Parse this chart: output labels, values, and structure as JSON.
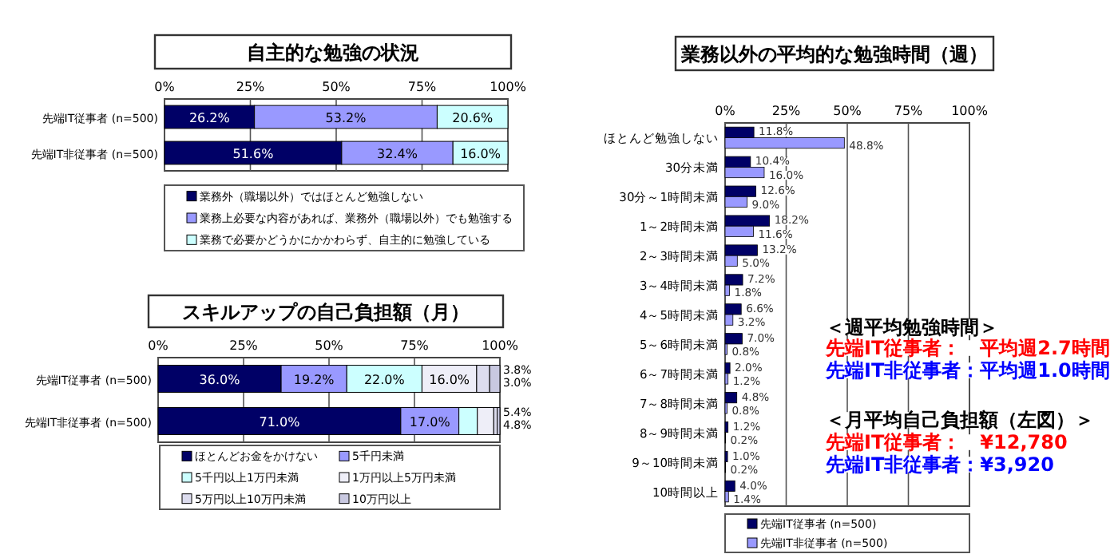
{
  "chart_data": [
    {
      "type": "bar",
      "orientation": "horizontal",
      "stacked": true,
      "title": "自主的な勉強の状況",
      "categories": [
        "先端IT従事者 (n=500)",
        "先端IT非従事者 (n=500)"
      ],
      "series": [
        {
          "name": "業務外（職場以外）ではほとんど勉強しない",
          "color": "#000066",
          "values": [
            26.2,
            51.6
          ],
          "value_labels": [
            "26.2%",
            "51.6%"
          ]
        },
        {
          "name": "業務上必要な内容があれば、業務外（職場以外）でも勉強する",
          "color": "#9999ff",
          "values": [
            53.2,
            32.4
          ],
          "value_labels": [
            "53.2%",
            "32.4%"
          ]
        },
        {
          "name": "業務で必要かどうかにかかわらず、自主的に勉強している",
          "color": "#ccffff",
          "values": [
            20.6,
            16.0
          ],
          "value_labels": [
            "20.6%",
            "16.0%"
          ]
        }
      ],
      "xlim": [
        0,
        100
      ],
      "xticks": [
        {
          "value": 0,
          "label": "0%"
        },
        {
          "value": 25,
          "label": "25%"
        },
        {
          "value": 50,
          "label": "50%"
        },
        {
          "value": 75,
          "label": "75%"
        },
        {
          "value": 100,
          "label": "100%"
        }
      ],
      "grid": "x",
      "legend": "bottom"
    },
    {
      "type": "bar",
      "orientation": "horizontal",
      "stacked": true,
      "title": "スキルアップの自己負担額（月）",
      "categories": [
        "先端IT従事者 (n=500)",
        "先端IT非従事者 (n=500)"
      ],
      "series": [
        {
          "name": "ほとんどお金をかけない",
          "color": "#000066",
          "values": [
            36.0,
            71.0
          ],
          "value_labels": [
            "36.0%",
            "71.0%"
          ]
        },
        {
          "name": "5千円未満",
          "color": "#9999ff",
          "values": [
            19.2,
            17.0
          ],
          "value_labels": [
            "19.2%",
            "17.0%"
          ]
        },
        {
          "name": "5千円以上1万円未満",
          "color": "#ccffff",
          "values": [
            22.0,
            5.4
          ],
          "value_labels": [
            "22.0%",
            "5.4%"
          ]
        },
        {
          "name": "1万円以上5万円未満",
          "color": "#eeeef8",
          "values": [
            16.0,
            4.8
          ],
          "value_labels": [
            "16.0%",
            "4.8%"
          ]
        },
        {
          "name": "5万円以上10万円未満",
          "color": "#dcdcee",
          "values": [
            3.8,
            1.0
          ],
          "value_labels": [
            "3.8%",
            null
          ]
        },
        {
          "name": "10万円以上",
          "color": "#c8c8e0",
          "values": [
            3.0,
            0.8
          ],
          "value_labels": [
            "3.0%",
            null
          ]
        }
      ],
      "xlim": [
        0,
        100
      ],
      "xticks": [
        {
          "value": 0,
          "label": "0%"
        },
        {
          "value": 25,
          "label": "25%"
        },
        {
          "value": 50,
          "label": "50%"
        },
        {
          "value": 75,
          "label": "75%"
        },
        {
          "value": 100,
          "label": "100%"
        }
      ],
      "grid": "x",
      "legend": "bottom"
    },
    {
      "type": "bar",
      "orientation": "horizontal",
      "title": "業務以外の平均的な勉強時間（週）",
      "categories": [
        "ほとんど勉強しない",
        "30分未満",
        "30分～1時間未満",
        "1～2時間未満",
        "2～3時間未満",
        "3～4時間未満",
        "4～5時間未満",
        "5～6時間未満",
        "6～7時間未満",
        "7～8時間未満",
        "8～9時間未満",
        "9～10時間未満",
        "10時間以上"
      ],
      "series": [
        {
          "name": "先端IT従事者 (n=500)",
          "color": "#000066",
          "values": [
            11.8,
            10.4,
            12.6,
            18.2,
            13.2,
            7.2,
            6.6,
            7.0,
            2.0,
            4.8,
            1.2,
            1.0,
            4.0
          ],
          "value_labels": [
            "11.8%",
            "10.4%",
            "12.6%",
            "18.2%",
            "13.2%",
            "7.2%",
            "6.6%",
            "7.0%",
            "2.0%",
            "4.8%",
            "1.2%",
            "1.0%",
            "4.0%"
          ]
        },
        {
          "name": "先端IT非従事者 (n=500)",
          "color": "#9999ff",
          "values": [
            48.8,
            16.0,
            9.0,
            11.6,
            5.0,
            1.8,
            3.2,
            0.8,
            1.2,
            0.8,
            0.2,
            0.2,
            1.4
          ],
          "value_labels": [
            "48.8%",
            "16.0%",
            "9.0%",
            "11.6%",
            "5.0%",
            "1.8%",
            "3.2%",
            "0.8%",
            "1.2%",
            "0.8%",
            "0.2%",
            "0.2%",
            "1.4%"
          ]
        }
      ],
      "xlim": [
        0,
        100
      ],
      "xticks": [
        {
          "value": 0,
          "label": "0%"
        },
        {
          "value": 25,
          "label": "25%"
        },
        {
          "value": 50,
          "label": "50%"
        },
        {
          "value": 75,
          "label": "75%"
        },
        {
          "value": 100,
          "label": "100%"
        }
      ],
      "grid": "x",
      "legend": "bottom"
    },
    {
      "type": "other",
      "annotations": [
        "＜週平均勉強時間＞",
        "先端IT従事者：　平均週2.7時間",
        "先端IT非従事者：平均週1.0時間",
        "＜月平均自己負担額（左図）＞",
        "先端IT従事者：　¥12,780",
        "先端IT非従事者：¥3,920"
      ],
      "colors": [
        "#000000",
        "#ff0000",
        "#0000ff",
        "#000000",
        "#ff0000",
        "#0000ff"
      ]
    }
  ]
}
